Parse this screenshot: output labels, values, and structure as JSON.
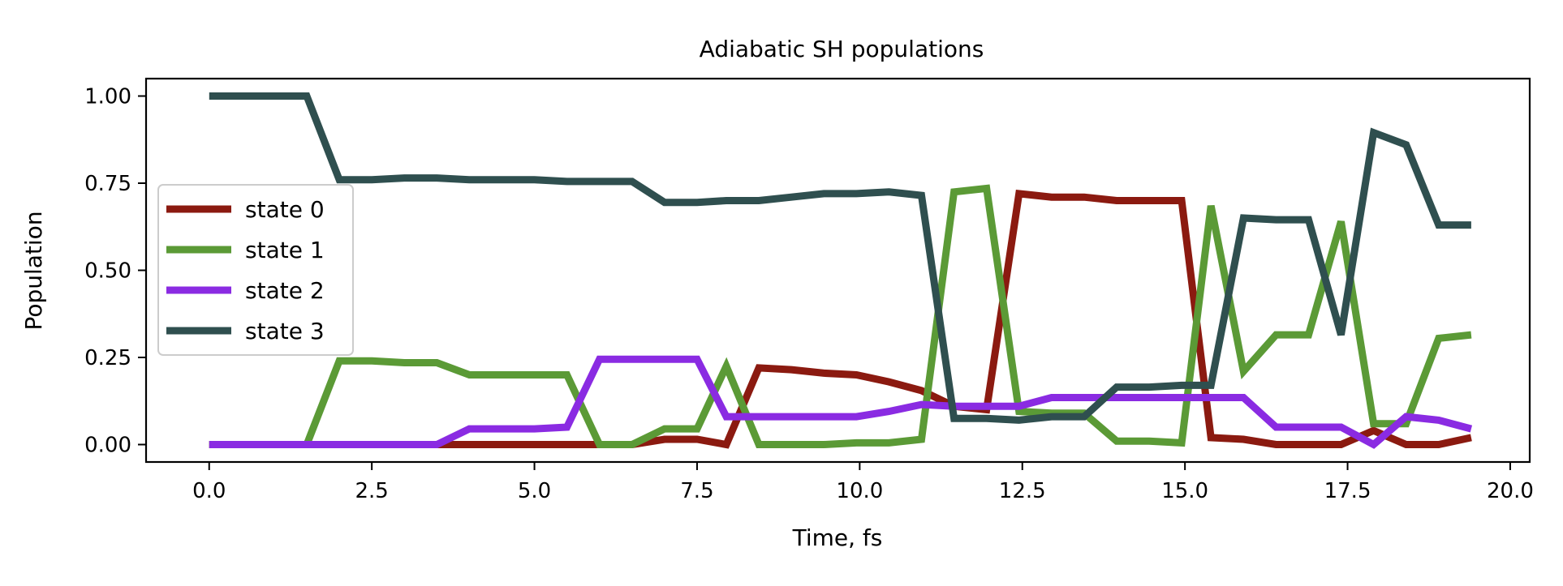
{
  "chart_data": {
    "type": "line",
    "title": "Adiabatic SH populations",
    "xlabel": "Time, fs",
    "ylabel": "Population",
    "xlim": [
      -0.97,
      20.3
    ],
    "ylim": [
      -0.05,
      1.05
    ],
    "xticks": [
      0.0,
      2.5,
      5.0,
      7.5,
      10.0,
      12.5,
      15.0,
      17.5,
      20.0
    ],
    "xtick_labels": [
      "0.0",
      "2.5",
      "5.0",
      "7.5",
      "10.0",
      "12.5",
      "15.0",
      "17.5",
      "20.0"
    ],
    "yticks": [
      0.0,
      0.25,
      0.5,
      0.75,
      1.0
    ],
    "ytick_labels": [
      "0.00",
      "0.25",
      "0.50",
      "0.75",
      "1.00"
    ],
    "grid": false,
    "legend_position": "center-left",
    "x": [
      0.0,
      0.5,
      1.0,
      1.5,
      2.0,
      2.5,
      3.0,
      3.5,
      4.0,
      4.5,
      5.0,
      5.5,
      6.0,
      6.5,
      7.0,
      7.5,
      7.95,
      8.45,
      8.95,
      9.45,
      9.95,
      10.45,
      10.95,
      11.45,
      11.95,
      12.45,
      12.95,
      13.45,
      13.95,
      14.45,
      14.95,
      15.4,
      15.9,
      16.4,
      16.9,
      17.4,
      17.9,
      18.4,
      18.9,
      19.4
    ],
    "series": [
      {
        "name": "state 0",
        "color": "#8b1a10",
        "values": [
          0.0,
          0.0,
          0.0,
          0.0,
          0.0,
          0.0,
          0.0,
          0.0,
          0.0,
          0.0,
          0.0,
          0.0,
          0.0,
          0.0,
          0.015,
          0.015,
          0.0,
          0.22,
          0.215,
          0.205,
          0.2,
          0.18,
          0.155,
          0.11,
          0.1,
          0.72,
          0.71,
          0.71,
          0.7,
          0.7,
          0.7,
          0.02,
          0.015,
          0.0,
          0.0,
          0.0,
          0.04,
          0.0,
          0.0,
          0.02
        ]
      },
      {
        "name": "state 1",
        "color": "#5b9a36",
        "values": [
          0.0,
          0.0,
          0.0,
          0.0,
          0.24,
          0.24,
          0.235,
          0.235,
          0.2,
          0.2,
          0.2,
          0.2,
          0.0,
          0.0,
          0.045,
          0.045,
          0.225,
          0.0,
          0.0,
          0.0,
          0.005,
          0.005,
          0.015,
          0.725,
          0.735,
          0.095,
          0.09,
          0.09,
          0.01,
          0.01,
          0.005,
          0.685,
          0.21,
          0.315,
          0.315,
          0.64,
          0.06,
          0.06,
          0.305,
          0.315
        ]
      },
      {
        "name": "state 2",
        "color": "#8a2be2",
        "values": [
          0.0,
          0.0,
          0.0,
          0.0,
          0.0,
          0.0,
          0.0,
          0.0,
          0.045,
          0.045,
          0.045,
          0.05,
          0.245,
          0.245,
          0.245,
          0.245,
          0.08,
          0.08,
          0.08,
          0.08,
          0.08,
          0.095,
          0.115,
          0.11,
          0.11,
          0.11,
          0.135,
          0.135,
          0.135,
          0.135,
          0.135,
          0.135,
          0.135,
          0.05,
          0.05,
          0.05,
          0.0,
          0.08,
          0.07,
          0.045
        ]
      },
      {
        "name": "state 3",
        "color": "#2f4f4f",
        "values": [
          1.0,
          1.0,
          1.0,
          1.0,
          0.76,
          0.76,
          0.765,
          0.765,
          0.76,
          0.76,
          0.76,
          0.755,
          0.755,
          0.755,
          0.695,
          0.695,
          0.7,
          0.7,
          0.71,
          0.72,
          0.72,
          0.725,
          0.715,
          0.075,
          0.075,
          0.07,
          0.08,
          0.08,
          0.165,
          0.165,
          0.17,
          0.17,
          0.65,
          0.645,
          0.645,
          0.315,
          0.895,
          0.86,
          0.63,
          0.63
        ]
      }
    ]
  }
}
